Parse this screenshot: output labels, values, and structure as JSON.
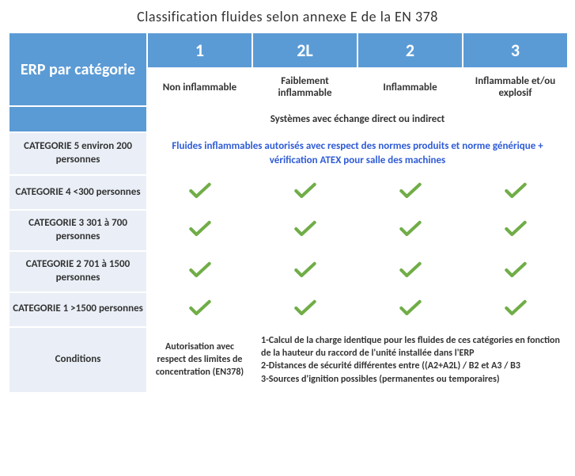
{
  "title": "Classification fluides selon annexe E de la EN 378",
  "header": {
    "erp_label": "ERP par catégorie",
    "cols": [
      "1",
      "2L",
      "2",
      "3"
    ],
    "subheads": [
      "Non inflammable",
      "Faiblement inflammable",
      "Inflammable",
      "Inflammable et/ou explosif"
    ],
    "system_row": "Systèmes avec échange direct ou indirect"
  },
  "cat5": {
    "label": "CATEGORIE 5 environ 200 personnes",
    "text": "Fluides inflammables autorisés avec respect des normes produits et norme générique + vérification ATEX pour salle des machines"
  },
  "rows": [
    {
      "label": "CATEGORIE 4 <300  personnes",
      "checks": [
        true,
        true,
        true,
        true
      ]
    },
    {
      "label": "CATEGORIE 3 301 à 700 personnes",
      "checks": [
        true,
        true,
        true,
        true
      ]
    },
    {
      "label": "CATEGORIE 2 701 à 1500 personnes",
      "checks": [
        true,
        true,
        true,
        true
      ]
    },
    {
      "label": "CATEGORIE 1 >1500 personnes",
      "checks": [
        true,
        true,
        true,
        true
      ]
    }
  ],
  "conditions": {
    "label": "Conditions",
    "col1": "Autorisation avec respect des limites de concentration (EN378)",
    "col234": "1-Calcul de la charge identique pour les fluides de ces catégories en fonction de la hauteur du raccord de l'unité installée dans l'ERP\n2-Distances de sécurité différentes entre ((A2+A2L) / B2 et A3 / B3\n3-Sources d'ignition possibles (permanentes ou temporaires)"
  },
  "check_color": "#70ad47"
}
